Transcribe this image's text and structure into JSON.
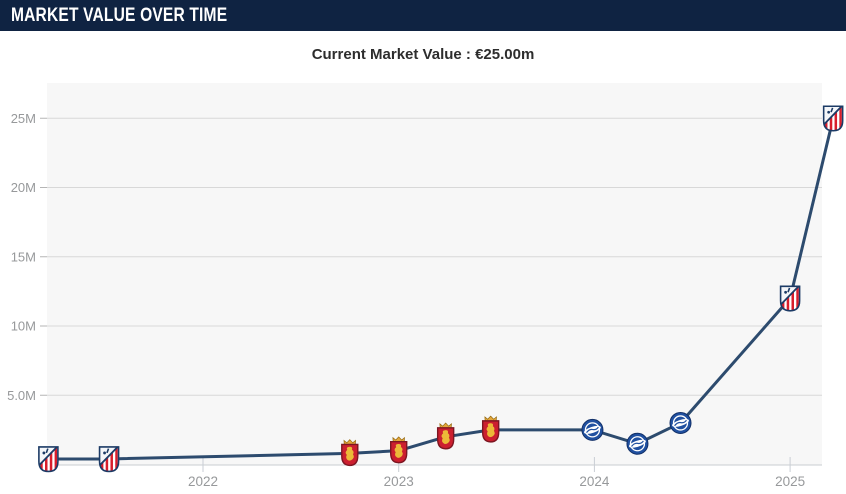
{
  "header": {
    "title": "MARKET VALUE OVER TIME"
  },
  "subtitle": {
    "text": "Current Market Value : €25.00m"
  },
  "colors": {
    "header_bg": "#0f2342",
    "header_text": "#ffffff",
    "subtitle_text": "#2d2d2d",
    "line": "#2d4b6e",
    "grid": "#d8d8d8",
    "axis_label": "#97999b",
    "tick": "#c9ced4",
    "axis_line": "#c9cdd2",
    "plot_bg": "#f7f7f7",
    "page_bg": "#ffffff"
  },
  "chart_data": {
    "type": "line",
    "title": "Market value over time",
    "current_value": "€25.00m",
    "unit": "EUR millions",
    "grid": true,
    "legend": "none",
    "x_ticks": [
      2022,
      2023,
      2024,
      2025
    ],
    "y_ticks": [
      {
        "value": 5,
        "label": "5.0M"
      },
      {
        "value": 10,
        "label": "10M"
      },
      {
        "value": 15,
        "label": "15M"
      },
      {
        "value": 20,
        "label": "20M"
      },
      {
        "value": 25,
        "label": "25M"
      }
    ],
    "xlim": [
      2021.1,
      2025.35
    ],
    "ylim": [
      0,
      27.6
    ],
    "series": [
      {
        "name": "Market value",
        "points": [
          {
            "x": 2021.21,
            "value": 0.4,
            "club": "atletico"
          },
          {
            "x": 2021.52,
            "value": 0.4,
            "club": "atletico"
          },
          {
            "x": 2022.75,
            "value": 0.8,
            "club": "zaragoza"
          },
          {
            "x": 2023.0,
            "value": 1.0,
            "club": "zaragoza"
          },
          {
            "x": 2023.24,
            "value": 2.0,
            "club": "zaragoza"
          },
          {
            "x": 2023.47,
            "value": 2.5,
            "club": "zaragoza"
          },
          {
            "x": 2023.99,
            "value": 2.5,
            "club": "alaves"
          },
          {
            "x": 2024.22,
            "value": 1.5,
            "club": "alaves"
          },
          {
            "x": 2024.44,
            "value": 3.0,
            "club": "alaves"
          },
          {
            "x": 2025.0,
            "value": 12.0,
            "club": "atletico"
          },
          {
            "x": 2025.22,
            "value": 25.0,
            "club": "atletico"
          }
        ]
      }
    ],
    "clubs": {
      "atletico": {
        "name": "Atlético de Madrid",
        "icon": "atletico-madrid-crest-icon"
      },
      "zaragoza": {
        "name": "Real Zaragoza",
        "icon": "real-zaragoza-crest-icon"
      },
      "alaves": {
        "name": "Deportivo Alavés",
        "icon": "deportivo-alaves-crest-icon"
      }
    }
  }
}
